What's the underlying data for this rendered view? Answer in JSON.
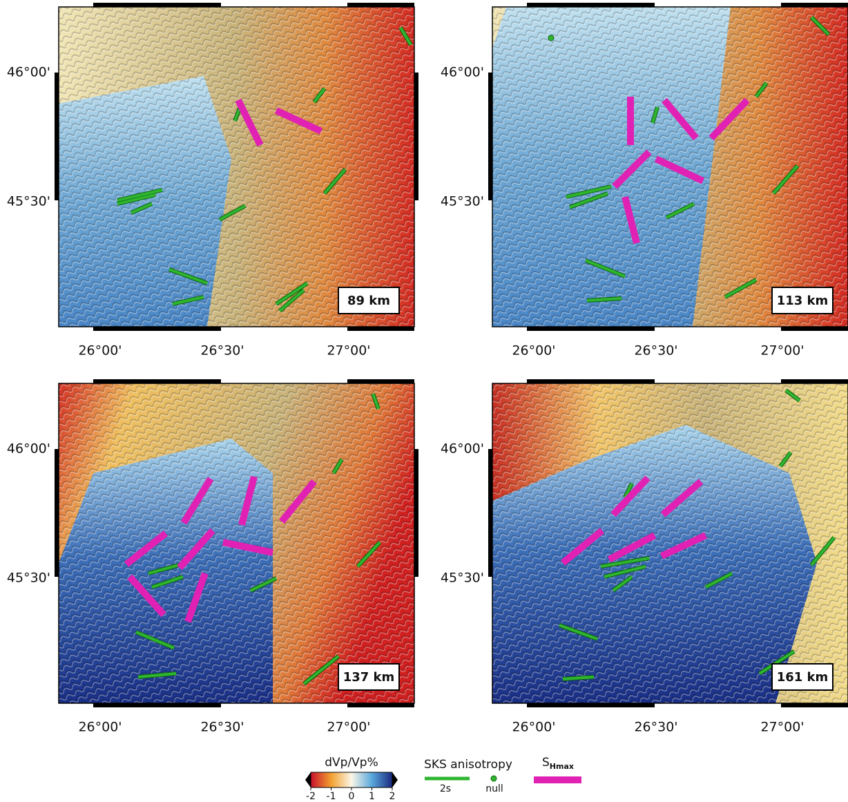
{
  "panels": [
    {
      "depth_label": "89 km",
      "y_labels": [
        "46°00'",
        "45°30'"
      ],
      "x_labels": [
        "26°00'",
        "26°30'",
        "27°00'"
      ]
    },
    {
      "depth_label": "113 km",
      "y_labels": [
        "46°00'",
        "45°30'"
      ],
      "x_labels": [
        "26°00'",
        "26°30'",
        "27°00'"
      ]
    },
    {
      "depth_label": "137 km",
      "y_labels": [
        "46°00'",
        "45°30'"
      ],
      "x_labels": [
        "26°00'",
        "26°30'",
        "27°00'"
      ]
    },
    {
      "depth_label": "161 km",
      "y_labels": [
        "46°00'",
        "45°30'"
      ],
      "x_labels": [
        "26°00'",
        "26°30'",
        "27°00'"
      ]
    }
  ],
  "legend": {
    "colorbar": {
      "title": "dVp/Vp%",
      "range": [
        -2,
        2
      ],
      "ticks": [
        -2,
        -1,
        0,
        1,
        2
      ]
    },
    "sks": {
      "title": "SKS anisotropy",
      "scale_label": "2s",
      "null_label": "null"
    },
    "shmax": {
      "title": "S",
      "subscript": "Hmax"
    }
  }
}
